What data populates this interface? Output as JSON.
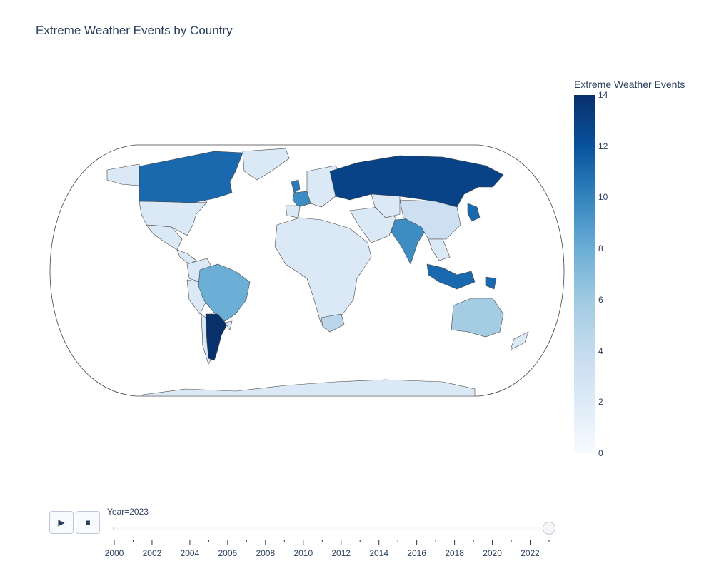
{
  "chart_data": {
    "type": "choropleth",
    "title": "Extreme Weather Events by Country",
    "colorbar": {
      "title": "Extreme Weather Events",
      "range": [
        0,
        14
      ],
      "ticks": [
        0,
        2,
        4,
        6,
        8,
        10,
        12,
        14
      ],
      "colors": [
        "#f7fbff",
        "#08306b"
      ]
    },
    "frame": "Year=2023",
    "countries": [
      {
        "name": "Russia",
        "value": 13
      },
      {
        "name": "Argentina",
        "value": 14
      },
      {
        "name": "Canada",
        "value": 11
      },
      {
        "name": "Japan",
        "value": 11
      },
      {
        "name": "Indonesia",
        "value": 11
      },
      {
        "name": "Papua New Guinea",
        "value": 11
      },
      {
        "name": "United Kingdom",
        "value": 10
      },
      {
        "name": "India",
        "value": 9
      },
      {
        "name": "France",
        "value": 9
      },
      {
        "name": "Brazil",
        "value": 7
      },
      {
        "name": "Australia",
        "value": 5
      },
      {
        "name": "South Africa",
        "value": 4
      },
      {
        "name": "China",
        "value": 3
      },
      {
        "name": "United States",
        "value": 2
      },
      {
        "name": "Greenland",
        "value": 2
      }
    ],
    "default_value": 2
  },
  "slider": {
    "label_prefix": "Year=",
    "current": "2023",
    "min": 2000,
    "max": 2023,
    "tick_labels": [
      "2000",
      "2002",
      "2004",
      "2006",
      "2008",
      "2010",
      "2012",
      "2014",
      "2016",
      "2018",
      "2020",
      "2022"
    ]
  },
  "controls": {
    "play_icon": "play-icon",
    "stop_icon": "stop-icon"
  }
}
